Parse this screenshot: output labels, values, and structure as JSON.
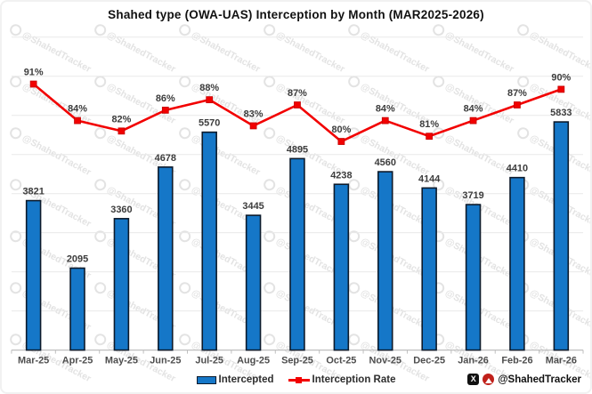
{
  "chart_data": {
    "type": "bar",
    "title": "Shahed type (OWA-UAS) Interception by Month (MAR2025-2026)",
    "categories": [
      "Mar-25",
      "Apr-25",
      "May-25",
      "Jun-25",
      "Jul-25",
      "Aug-25",
      "Sep-25",
      "Oct-25",
      "Nov-25",
      "Dec-25",
      "Jan-26",
      "Feb-26",
      "Mar-26"
    ],
    "series": [
      {
        "name": "Intercepted",
        "type": "bar",
        "axis": "left",
        "values": [
          3821,
          2095,
          3360,
          4678,
          5570,
          3445,
          4895,
          4238,
          4560,
          4144,
          3719,
          4410,
          5833
        ],
        "color": "#1577c8",
        "border_color": "#0c1a2b"
      },
      {
        "name": "Interception Rate",
        "type": "line",
        "axis": "right",
        "unit": "%",
        "values": [
          91,
          84,
          82,
          86,
          88,
          83,
          87,
          80,
          84,
          81,
          84,
          87,
          90
        ],
        "labels": [
          "91%",
          "84%",
          "82%",
          "86%",
          "88%",
          "83%",
          "87%",
          "80%",
          "84%",
          "81%",
          "84%",
          "87%",
          "90%"
        ],
        "color": "#f20000",
        "marker": "square"
      }
    ],
    "left_axis": {
      "min": 0,
      "max": 8000,
      "gridline_step": 1000,
      "tick_labels_visible": false
    },
    "right_axis": {
      "min": 40,
      "max": 100,
      "tick_labels_visible": false
    },
    "grid": true,
    "grid_color": "#e9e9e9",
    "axis_line_color": "#bfbfbf",
    "data_label_color": "#3c3c3c",
    "category_label_color": "#4d4d4d",
    "legend_position": "bottom"
  },
  "legend": {
    "items": [
      {
        "label": "Intercepted"
      },
      {
        "label": "Interception Rate"
      }
    ]
  },
  "attribution": {
    "handle": "@ShahedTracker",
    "x_glyph": "X"
  },
  "watermark": {
    "text": "@ShahedTracker"
  }
}
